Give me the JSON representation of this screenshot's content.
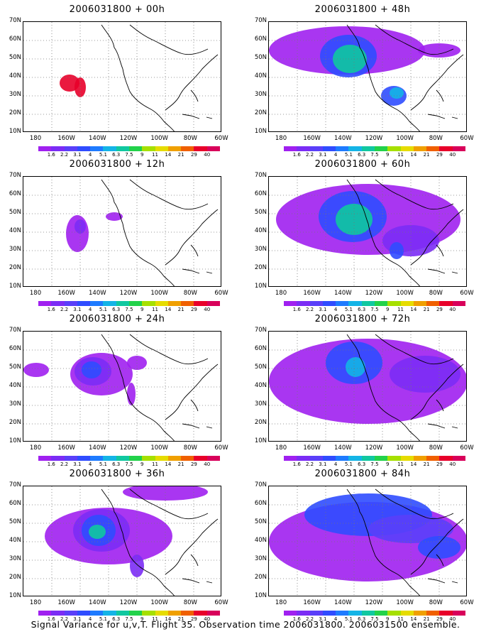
{
  "panels": [
    {
      "title": "2006031800 + 00h"
    },
    {
      "title": "2006031800 + 12h"
    },
    {
      "title": "2006031800 + 24h"
    },
    {
      "title": "2006031800 + 36h"
    },
    {
      "title": "2006031800 + 48h"
    },
    {
      "title": "2006031800 + 60h"
    },
    {
      "title": "2006031800 + 72h"
    },
    {
      "title": "2006031800 + 84h"
    }
  ],
  "lat_labels": [
    "70N",
    "60N",
    "50N",
    "40N",
    "30N",
    "20N",
    "10N"
  ],
  "lon_labels": [
    "180",
    "160W",
    "140W",
    "120W",
    "100W",
    "80W",
    "60W"
  ],
  "colorbar": {
    "labels": [
      "1.6",
      "2.2",
      "3.1",
      "4",
      "5.1",
      "6.3",
      "7.5",
      "9",
      "11",
      "14",
      "21",
      "29",
      "40"
    ],
    "colors": [
      "#a020f0",
      "#7b2cf5",
      "#5a3ff9",
      "#2f4cff",
      "#1e7bff",
      "#14b4e6",
      "#10c8a0",
      "#22d24a",
      "#a6e000",
      "#e6dc00",
      "#f0a000",
      "#f06000",
      "#e8002a",
      "#d8005a"
    ]
  },
  "footer": "Signal Variance for u,v,T. Flight 35. Observation time 2006031800. 2006031500 ensemble."
}
